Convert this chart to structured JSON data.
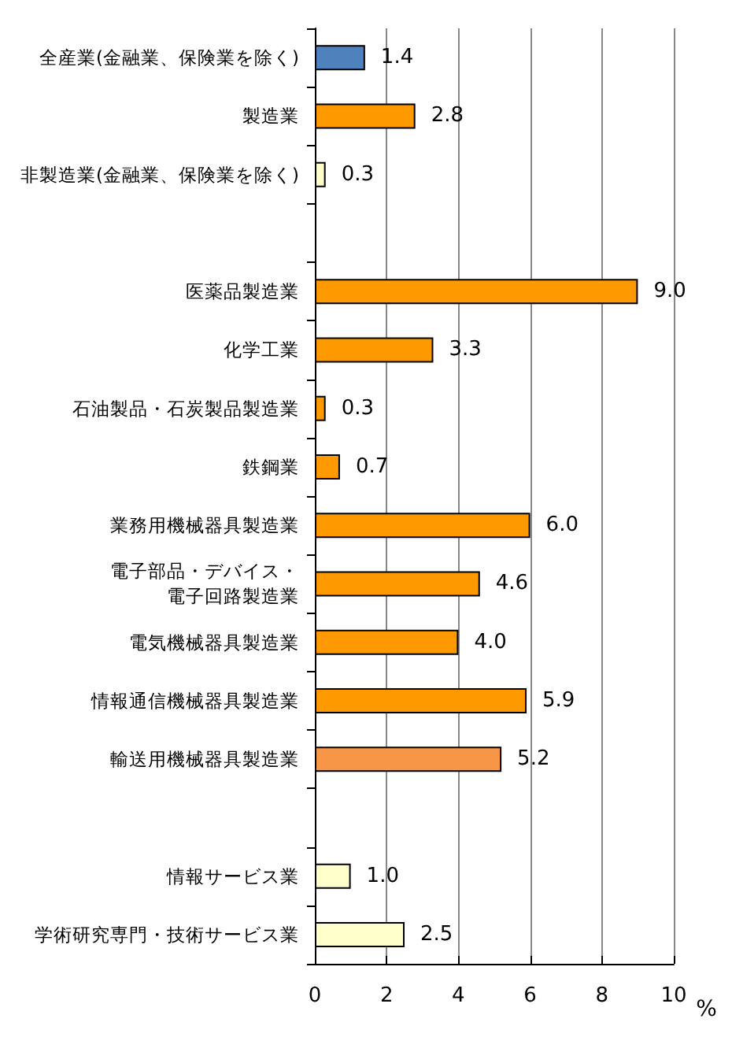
{
  "chart_data": {
    "type": "bar",
    "orientation": "horizontal",
    "xlabel": "%",
    "categories": [
      "全産業(金融業、保険業を除く)",
      "製造業",
      "非製造業(金融業、保険業を除く)",
      null,
      "医薬品製造業",
      "化学工業",
      "石油製品・石炭製品製造業",
      "鉄鋼業",
      "業務用機械器具製造業",
      "電子部品・デバイス・電子回路製造業",
      "電気機械器具製造業",
      "情報通信機械器具製造業",
      "輸送用機械器具製造業",
      null,
      "情報サービス業",
      "学術研究専門・技術サービス業"
    ],
    "values": [
      1.4,
      2.8,
      0.3,
      null,
      9.0,
      3.3,
      0.3,
      0.7,
      6.0,
      4.6,
      4.0,
      5.9,
      5.2,
      null,
      1.0,
      2.5
    ],
    "value_labels": [
      "1.4",
      "2.8",
      "0.3",
      null,
      "9.0",
      "3.3",
      "0.3",
      "0.7",
      "6.0",
      "4.6",
      "4.0",
      "5.9",
      "5.2",
      null,
      "1.0",
      "2.5"
    ],
    "colors": [
      "#4f81bd",
      "#ff9900",
      "#ffffcc",
      null,
      "#ff9900",
      "#ff9900",
      "#ff9900",
      "#ff9900",
      "#ff9900",
      "#ff9900",
      "#ff9900",
      "#ff9900",
      "#f79646",
      null,
      "#ffffcc",
      "#ffffcc"
    ],
    "xlim": [
      0,
      10
    ],
    "xticks": [
      0,
      2,
      4,
      6,
      8,
      10
    ],
    "grid": "x"
  }
}
